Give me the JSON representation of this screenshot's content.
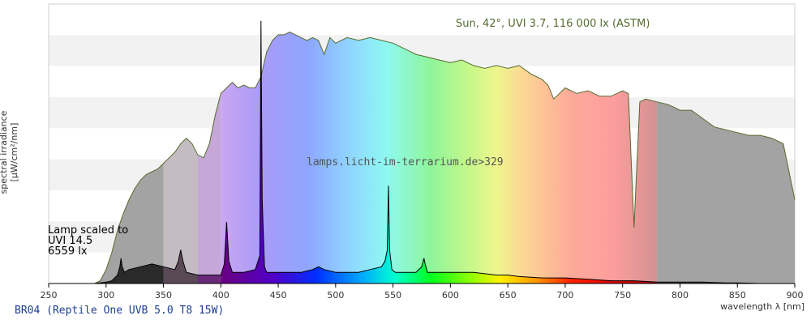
{
  "chart_data": {
    "type": "area",
    "xlabel": "wavelength λ [nm]",
    "ylabel": "spectral irradiance [µW/cm²/nm]",
    "xlim": [
      250,
      900
    ],
    "ylim": [
      0,
      1
    ],
    "x_ticks": [
      250,
      300,
      350,
      400,
      450,
      500,
      550,
      600,
      650,
      700,
      750,
      800,
      850,
      900
    ],
    "grid": "horizontal bands",
    "annotations": {
      "sun": "Sun, 42°, UVI 3.7, 116 000 lx (ASTM)",
      "watermark": "lamps.licht-im-terrarium.de>329",
      "lamp": [
        "Lamp scaled to",
        "UVI 14.5",
        "6559 lx"
      ]
    },
    "footer": "BR04 (Reptile One UVB 5.0 T8 15W)",
    "series": [
      {
        "name": "Sun, 42°, UVI 3.7, 116 000 lx (ASTM)",
        "color": "#556b2f",
        "x": [
          290,
          295,
          300,
          305,
          310,
          315,
          320,
          325,
          330,
          335,
          340,
          345,
          350,
          355,
          360,
          365,
          370,
          375,
          380,
          385,
          390,
          395,
          400,
          405,
          410,
          415,
          420,
          425,
          430,
          435,
          440,
          445,
          450,
          455,
          460,
          465,
          470,
          475,
          480,
          485,
          490,
          495,
          500,
          510,
          520,
          530,
          540,
          550,
          560,
          570,
          580,
          590,
          600,
          610,
          620,
          630,
          640,
          650,
          660,
          670,
          680,
          685,
          690,
          700,
          710,
          720,
          730,
          740,
          750,
          755,
          760,
          765,
          770,
          780,
          790,
          800,
          810,
          820,
          830,
          840,
          850,
          860,
          870,
          880,
          890,
          900
        ],
        "y": [
          0.0,
          0.01,
          0.05,
          0.11,
          0.19,
          0.25,
          0.3,
          0.34,
          0.37,
          0.39,
          0.4,
          0.41,
          0.43,
          0.45,
          0.47,
          0.5,
          0.52,
          0.5,
          0.46,
          0.45,
          0.5,
          0.6,
          0.68,
          0.7,
          0.72,
          0.7,
          0.71,
          0.7,
          0.7,
          0.74,
          0.83,
          0.87,
          0.89,
          0.89,
          0.9,
          0.89,
          0.88,
          0.87,
          0.88,
          0.87,
          0.82,
          0.88,
          0.86,
          0.88,
          0.87,
          0.88,
          0.87,
          0.86,
          0.84,
          0.82,
          0.81,
          0.8,
          0.79,
          0.8,
          0.78,
          0.77,
          0.78,
          0.77,
          0.78,
          0.75,
          0.73,
          0.71,
          0.66,
          0.7,
          0.68,
          0.69,
          0.67,
          0.67,
          0.69,
          0.68,
          0.2,
          0.65,
          0.66,
          0.65,
          0.64,
          0.62,
          0.62,
          0.59,
          0.56,
          0.55,
          0.54,
          0.53,
          0.53,
          0.52,
          0.5,
          0.3
        ]
      },
      {
        "name": "BR04 (Reptile One UVB 5.0 T8 15W)",
        "color": "#000000",
        "x": [
          270,
          290,
          300,
          305,
          310,
          312,
          313,
          314,
          316,
          320,
          330,
          340,
          350,
          360,
          363,
          365,
          367,
          370,
          380,
          390,
          400,
          403,
          405,
          407,
          410,
          420,
          430,
          434,
          435,
          436,
          438,
          440,
          450,
          460,
          470,
          480,
          485,
          490,
          495,
          500,
          510,
          520,
          530,
          540,
          543,
          545,
          546,
          547,
          549,
          552,
          560,
          570,
          575,
          577,
          578,
          580,
          583,
          590,
          600,
          610,
          620,
          630,
          640,
          650,
          660,
          680,
          700,
          720,
          740,
          760,
          780,
          800,
          820,
          840,
          850,
          870,
          880,
          900
        ],
        "y": [
          0.0,
          0.0,
          0.005,
          0.01,
          0.03,
          0.06,
          0.09,
          0.06,
          0.04,
          0.05,
          0.06,
          0.07,
          0.06,
          0.05,
          0.08,
          0.12,
          0.08,
          0.04,
          0.03,
          0.03,
          0.03,
          0.07,
          0.22,
          0.08,
          0.04,
          0.04,
          0.05,
          0.1,
          0.94,
          0.3,
          0.06,
          0.04,
          0.04,
          0.04,
          0.04,
          0.05,
          0.06,
          0.05,
          0.045,
          0.04,
          0.04,
          0.04,
          0.05,
          0.06,
          0.08,
          0.12,
          0.35,
          0.12,
          0.05,
          0.04,
          0.04,
          0.04,
          0.06,
          0.09,
          0.07,
          0.04,
          0.04,
          0.04,
          0.04,
          0.04,
          0.04,
          0.035,
          0.03,
          0.03,
          0.025,
          0.02,
          0.02,
          0.015,
          0.01,
          0.01,
          0.005,
          0.005,
          0.005,
          0.002,
          0.002,
          0.0,
          0.0,
          0.0
        ]
      }
    ]
  }
}
